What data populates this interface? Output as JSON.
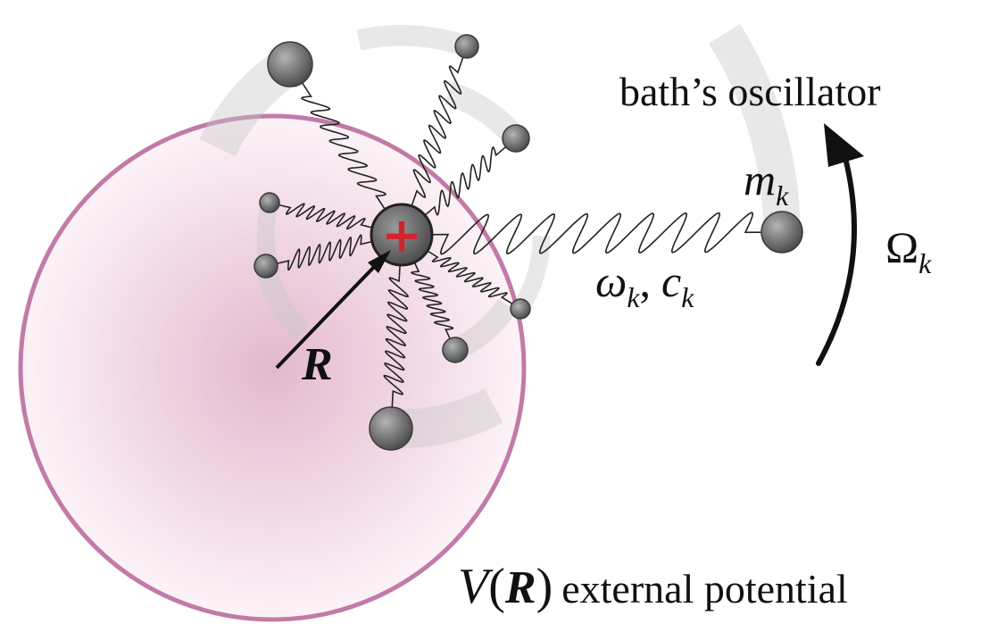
{
  "labels": {
    "bath_oscillator": "bath’s oscillator",
    "mass": {
      "symbol": "m",
      "sub": "k"
    },
    "frequency": {
      "symbol": "Ω",
      "sub": "k"
    },
    "spring_params": {
      "omega": "ω",
      "omega_sub": "k",
      "comma": ",",
      "c": "c",
      "c_sub": "k"
    },
    "position": "R",
    "potential": {
      "prefix": "V",
      "open": "(",
      "arg": "R",
      "close": ")",
      "text": "external potential"
    },
    "charge_sign": "+"
  },
  "colors": {
    "potential_outline": "#c27aa6",
    "potential_fill_center": "#e3b8cf",
    "charge_mark": "#d0252f",
    "particle": "#707070",
    "spring": "#222222",
    "arrow": "#111111"
  }
}
